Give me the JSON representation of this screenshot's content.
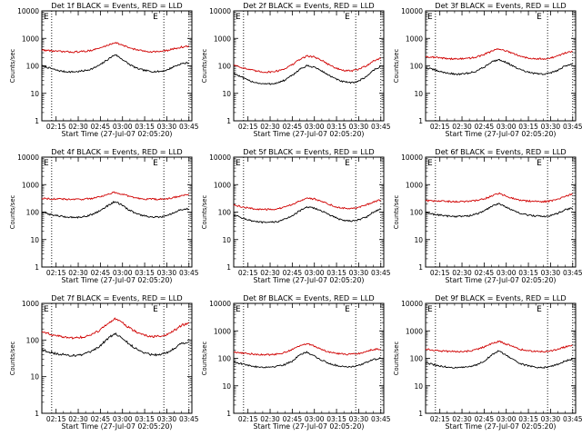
{
  "figure": {
    "colors": {
      "events": "#000000",
      "lld": "#d00000",
      "axis": "#000000"
    },
    "y_tick_labels": [
      "1",
      "10",
      "100",
      "1000",
      "10000"
    ],
    "x_tick_labels": [
      "02:15",
      "02:30",
      "02:45",
      "03:00",
      "03:15",
      "03:30",
      "03:45"
    ],
    "flag_letter_left": "E",
    "flag_letter_right": "E"
  },
  "chart_data": [
    {
      "type": "line",
      "title": "Det 1f BLACK = Events, RED = LLD",
      "xlabel": "Start Time (27-Jul-07 02:05:20)",
      "ylabel": "Counts/sec",
      "xlim": [
        "02:05:20",
        "03:47:00"
      ],
      "ylim": [
        1,
        10000
      ],
      "yscale": "log",
      "grid": false,
      "vlines": [
        "02:12",
        "03:28",
        "03:45"
      ],
      "x": [
        "02:05",
        "02:10",
        "02:15",
        "02:20",
        "02:25",
        "02:30",
        "02:35",
        "02:40",
        "02:45",
        "02:50",
        "02:55",
        "03:00",
        "03:05",
        "03:10",
        "03:15",
        "03:20",
        "03:25",
        "03:30",
        "03:35",
        "03:40",
        "03:45"
      ],
      "series": [
        {
          "name": "Events",
          "color": "#000000",
          "values": [
            100,
            85,
            70,
            62,
            60,
            62,
            68,
            80,
            110,
            170,
            260,
            170,
            110,
            80,
            68,
            62,
            62,
            70,
            95,
            120,
            130
          ]
        },
        {
          "name": "LLD",
          "color": "#d00000",
          "values": [
            380,
            360,
            340,
            330,
            320,
            325,
            340,
            380,
            450,
            560,
            720,
            560,
            450,
            380,
            340,
            330,
            330,
            360,
            420,
            480,
            520
          ]
        }
      ]
    },
    {
      "type": "line",
      "title": "Det 2f BLACK = Events, RED = LLD",
      "xlabel": "Start Time (27-Jul-07 02:05:20)",
      "ylabel": "Counts/sec",
      "xlim": [
        "02:05:20",
        "03:47:00"
      ],
      "ylim": [
        1,
        10000
      ],
      "yscale": "log",
      "grid": false,
      "vlines": [
        "02:12",
        "03:28",
        "03:45"
      ],
      "x": [
        "02:05",
        "02:10",
        "02:15",
        "02:20",
        "02:25",
        "02:30",
        "02:35",
        "02:40",
        "02:45",
        "02:50",
        "02:55",
        "03:00",
        "03:05",
        "03:10",
        "03:15",
        "03:20",
        "03:25",
        "03:30",
        "03:35",
        "03:40",
        "03:45"
      ],
      "series": [
        {
          "name": "Events",
          "color": "#000000",
          "values": [
            55,
            40,
            30,
            25,
            22,
            22,
            24,
            30,
            45,
            75,
            100,
            90,
            65,
            45,
            32,
            26,
            24,
            28,
            40,
            70,
            95
          ]
        },
        {
          "name": "LLD",
          "color": "#d00000",
          "values": [
            110,
            90,
            75,
            65,
            60,
            60,
            65,
            80,
            110,
            170,
            230,
            210,
            160,
            110,
            80,
            68,
            65,
            75,
            100,
            150,
            190
          ]
        }
      ]
    },
    {
      "type": "line",
      "title": "Det 3f BLACK = Events, RED = LLD",
      "xlabel": "Start Time (27-Jul-07 02:05:20)",
      "ylabel": "Counts/sec",
      "xlim": [
        "02:05:20",
        "03:47:00"
      ],
      "ylim": [
        1,
        10000
      ],
      "yscale": "log",
      "grid": false,
      "vlines": [
        "02:12",
        "03:28",
        "03:45"
      ],
      "x": [
        "02:05",
        "02:10",
        "02:15",
        "02:20",
        "02:25",
        "02:30",
        "02:35",
        "02:40",
        "02:45",
        "02:50",
        "02:55",
        "03:00",
        "03:05",
        "03:10",
        "03:15",
        "03:20",
        "03:25",
        "03:30",
        "03:35",
        "03:40",
        "03:45"
      ],
      "series": [
        {
          "name": "Events",
          "color": "#000000",
          "values": [
            85,
            75,
            62,
            55,
            50,
            50,
            55,
            65,
            90,
            140,
            170,
            135,
            95,
            70,
            58,
            52,
            50,
            55,
            70,
            100,
            120
          ]
        },
        {
          "name": "LLD",
          "color": "#d00000",
          "values": [
            220,
            210,
            195,
            185,
            180,
            180,
            190,
            210,
            260,
            340,
            420,
            350,
            270,
            220,
            195,
            185,
            180,
            190,
            230,
            300,
            340
          ]
        }
      ]
    },
    {
      "type": "line",
      "title": "Det 4f BLACK = Events, RED = LLD",
      "xlabel": "Start Time (27-Jul-07 02:05:20)",
      "ylabel": "Counts/sec",
      "xlim": [
        "02:05:20",
        "03:47:00"
      ],
      "ylim": [
        1,
        10000
      ],
      "yscale": "log",
      "grid": false,
      "vlines": [
        "02:12",
        "03:28",
        "03:45"
      ],
      "x": [
        "02:05",
        "02:10",
        "02:15",
        "02:20",
        "02:25",
        "02:30",
        "02:35",
        "02:40",
        "02:45",
        "02:50",
        "02:55",
        "03:00",
        "03:05",
        "03:10",
        "03:15",
        "03:20",
        "03:25",
        "03:30",
        "03:35",
        "03:40",
        "03:45"
      ],
      "series": [
        {
          "name": "Events",
          "color": "#000000",
          "values": [
            100,
            85,
            75,
            68,
            65,
            65,
            70,
            85,
            115,
            170,
            250,
            170,
            115,
            85,
            72,
            66,
            65,
            72,
            95,
            125,
            130
          ]
        },
        {
          "name": "LLD",
          "color": "#d00000",
          "values": [
            320,
            310,
            300,
            295,
            290,
            290,
            300,
            320,
            370,
            440,
            530,
            440,
            370,
            320,
            300,
            295,
            290,
            300,
            340,
            400,
            430
          ]
        }
      ]
    },
    {
      "type": "line",
      "title": "Det 5f BLACK = Events, RED = LLD",
      "xlabel": "Start Time (27-Jul-07 02:05:20)",
      "ylabel": "Counts/sec",
      "xlim": [
        "02:05:20",
        "03:47:00"
      ],
      "ylim": [
        1,
        10000
      ],
      "yscale": "log",
      "grid": false,
      "vlines": [
        "02:12",
        "03:28",
        "03:45"
      ],
      "x": [
        "02:05",
        "02:10",
        "02:15",
        "02:20",
        "02:25",
        "02:30",
        "02:35",
        "02:40",
        "02:45",
        "02:50",
        "02:55",
        "03:00",
        "03:05",
        "03:10",
        "03:15",
        "03:20",
        "03:25",
        "03:30",
        "03:35",
        "03:40",
        "03:45"
      ],
      "series": [
        {
          "name": "Events",
          "color": "#000000",
          "values": [
            80,
            65,
            52,
            45,
            42,
            42,
            45,
            55,
            75,
            110,
            150,
            140,
            110,
            80,
            60,
            50,
            48,
            52,
            65,
            100,
            130
          ]
        },
        {
          "name": "LLD",
          "color": "#d00000",
          "values": [
            180,
            160,
            140,
            130,
            125,
            125,
            130,
            150,
            190,
            260,
            320,
            300,
            250,
            190,
            155,
            140,
            135,
            145,
            180,
            240,
            280
          ]
        }
      ]
    },
    {
      "type": "line",
      "title": "Det 6f BLACK = Events, RED = LLD",
      "xlabel": "Start Time (27-Jul-07 02:05:20)",
      "ylabel": "Counts/sec",
      "xlim": [
        "02:05:20",
        "03:47:00"
      ],
      "ylim": [
        1,
        10000
      ],
      "yscale": "log",
      "grid": false,
      "vlines": [
        "02:12",
        "03:28",
        "03:45"
      ],
      "x": [
        "02:05",
        "02:10",
        "02:15",
        "02:20",
        "02:25",
        "02:30",
        "02:35",
        "02:40",
        "02:45",
        "02:50",
        "02:55",
        "03:00",
        "03:05",
        "03:10",
        "03:15",
        "03:20",
        "03:25",
        "03:30",
        "03:35",
        "03:40",
        "03:45"
      ],
      "series": [
        {
          "name": "Events",
          "color": "#000000",
          "values": [
            95,
            85,
            78,
            72,
            70,
            70,
            74,
            85,
            110,
            160,
            210,
            150,
            110,
            88,
            78,
            72,
            70,
            75,
            92,
            120,
            140
          ]
        },
        {
          "name": "LLD",
          "color": "#d00000",
          "values": [
            260,
            255,
            250,
            245,
            240,
            240,
            250,
            265,
            300,
            380,
            480,
            380,
            310,
            270,
            250,
            245,
            240,
            255,
            300,
            380,
            450
          ]
        }
      ]
    },
    {
      "type": "line",
      "title": "Det 7f BLACK = Events, RED = LLD",
      "xlabel": "Start Time (27-Jul-07 02:05:20)",
      "ylabel": "Counts/sec",
      "xlim": [
        "02:05:20",
        "03:47:00"
      ],
      "ylim": [
        1,
        1000
      ],
      "yscale": "log",
      "grid": false,
      "vlines": [
        "02:12",
        "03:28",
        "03:45"
      ],
      "x": [
        "02:05",
        "02:10",
        "02:15",
        "02:20",
        "02:25",
        "02:30",
        "02:35",
        "02:40",
        "02:45",
        "02:50",
        "02:55",
        "03:00",
        "03:05",
        "03:10",
        "03:15",
        "03:20",
        "03:25",
        "03:30",
        "03:35",
        "03:40",
        "03:45"
      ],
      "series": [
        {
          "name": "Events",
          "color": "#000000",
          "values": [
            55,
            48,
            42,
            40,
            38,
            38,
            42,
            50,
            70,
            110,
            150,
            110,
            75,
            55,
            45,
            40,
            40,
            45,
            60,
            80,
            90
          ]
        },
        {
          "name": "LLD",
          "color": "#d00000",
          "values": [
            170,
            150,
            130,
            120,
            115,
            115,
            125,
            145,
            190,
            280,
            380,
            290,
            210,
            160,
            135,
            125,
            125,
            140,
            180,
            250,
            290
          ]
        }
      ]
    },
    {
      "type": "line",
      "title": "Det 8f BLACK = Events, RED = LLD",
      "xlabel": "Start Time (27-Jul-07 02:05:20)",
      "ylabel": "Counts/sec",
      "xlim": [
        "02:05:20",
        "03:47:00"
      ],
      "ylim": [
        1,
        10000
      ],
      "yscale": "log",
      "grid": false,
      "vlines": [
        "02:12",
        "03:28",
        "03:45"
      ],
      "x": [
        "02:05",
        "02:10",
        "02:15",
        "02:20",
        "02:25",
        "02:30",
        "02:35",
        "02:40",
        "02:45",
        "02:50",
        "02:55",
        "03:00",
        "03:05",
        "03:10",
        "03:15",
        "03:20",
        "03:25",
        "03:30",
        "03:35",
        "03:40",
        "03:45"
      ],
      "series": [
        {
          "name": "Events",
          "color": "#000000",
          "values": [
            75,
            65,
            55,
            50,
            48,
            48,
            52,
            60,
            80,
            130,
            170,
            120,
            85,
            65,
            55,
            50,
            50,
            55,
            70,
            90,
            100
          ]
        },
        {
          "name": "LLD",
          "color": "#d00000",
          "values": [
            170,
            160,
            150,
            140,
            135,
            135,
            145,
            165,
            210,
            290,
            340,
            280,
            210,
            170,
            150,
            140,
            140,
            150,
            180,
            210,
            220
          ]
        }
      ]
    },
    {
      "type": "line",
      "title": "Det 9f BLACK = Events, RED = LLD",
      "xlabel": "Start Time (27-Jul-07 02:05:20)",
      "ylabel": "Counts/sec",
      "xlim": [
        "02:05:20",
        "03:47:00"
      ],
      "ylim": [
        1,
        10000
      ],
      "yscale": "log",
      "grid": false,
      "vlines": [
        "02:12",
        "03:28",
        "03:45"
      ],
      "x": [
        "02:05",
        "02:10",
        "02:15",
        "02:20",
        "02:25",
        "02:30",
        "02:35",
        "02:40",
        "02:45",
        "02:50",
        "02:55",
        "03:00",
        "03:05",
        "03:10",
        "03:15",
        "03:20",
        "03:25",
        "03:30",
        "03:35",
        "03:40",
        "03:45"
      ],
      "series": [
        {
          "name": "Events",
          "color": "#000000",
          "values": [
            70,
            60,
            52,
            48,
            46,
            46,
            50,
            58,
            80,
            130,
            190,
            130,
            85,
            62,
            54,
            48,
            46,
            50,
            62,
            80,
            95
          ]
        },
        {
          "name": "LLD",
          "color": "#d00000",
          "values": [
            220,
            200,
            185,
            180,
            175,
            175,
            185,
            210,
            260,
            340,
            420,
            330,
            260,
            210,
            190,
            180,
            175,
            185,
            220,
            260,
            290
          ]
        }
      ]
    }
  ]
}
